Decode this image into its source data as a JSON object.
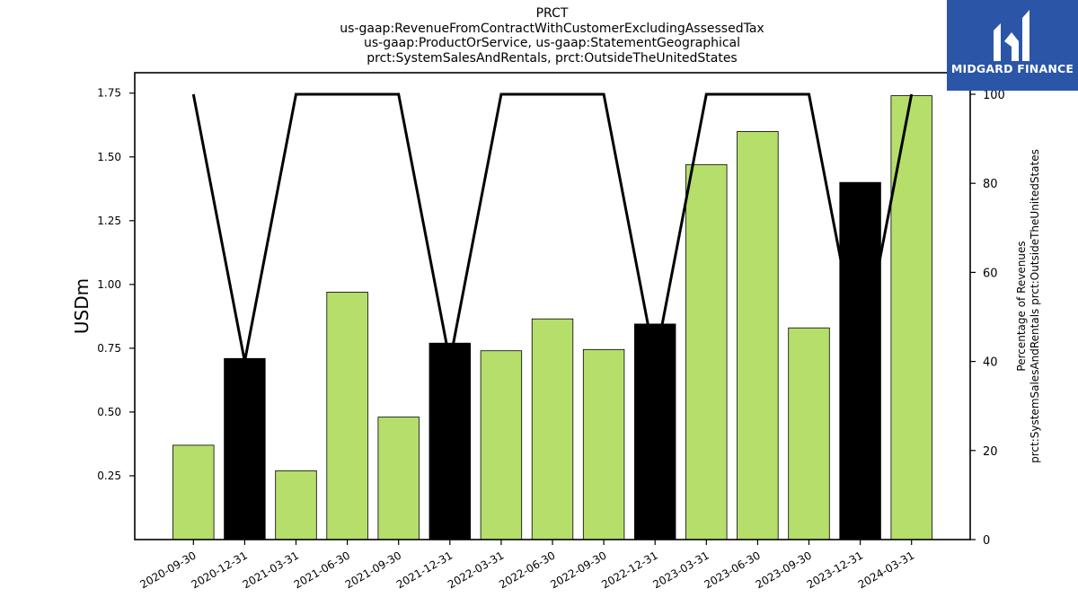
{
  "title_lines": [
    "PRCT",
    "us-gaap:RevenueFromContractWithCustomerExcludingAssessedTax",
    "us-gaap:ProductOrService, us-gaap:StatementGeographical",
    "prct:SystemSalesAndRentals, prct:OutsideTheUnitedStates"
  ],
  "logo": {
    "text": "MIDGARD FINANCE",
    "icon": "midgard-m-logo-icon",
    "color": "#2b56a8"
  },
  "chart_data": {
    "type": "bar",
    "categories": [
      "2020-09-30",
      "2020-12-31",
      "2021-03-31",
      "2021-06-30",
      "2021-09-30",
      "2021-12-31",
      "2022-03-31",
      "2022-06-30",
      "2022-09-30",
      "2022-12-31",
      "2023-03-31",
      "2023-06-30",
      "2023-09-30",
      "2023-12-31",
      "2024-03-31"
    ],
    "values": [
      0.37,
      0.71,
      0.27,
      0.97,
      0.48,
      0.77,
      0.74,
      0.865,
      0.745,
      0.845,
      1.47,
      1.6,
      0.83,
      1.4,
      1.74
    ],
    "bar_colors": [
      "#b5de6b",
      "#000000",
      "#b5de6b",
      "#b5de6b",
      "#b5de6b",
      "#000000",
      "#b5de6b",
      "#b5de6b",
      "#b5de6b",
      "#000000",
      "#b5de6b",
      "#b5de6b",
      "#b5de6b",
      "#000000",
      "#b5de6b"
    ],
    "ylabel": "USDm",
    "ylim": [
      0,
      1.83
    ],
    "yticks": [
      0.25,
      0.5,
      0.75,
      1.0,
      1.25,
      1.5,
      1.75
    ],
    "ytick_labels": [
      "0.25",
      "0.50",
      "0.75",
      "1.00",
      "1.25",
      "1.50",
      "1.75"
    ],
    "secondary": {
      "type": "line",
      "ylabel_lines": [
        "Percentage of Revenues",
        "prct:SystemSalesAndRentals prct:OutsideTheUnitedStates"
      ],
      "ylim": [
        0,
        100
      ],
      "yticks": [
        0,
        20,
        40,
        60,
        80,
        100
      ],
      "ytick_labels": [
        "0",
        "20",
        "40",
        "60",
        "80",
        "100"
      ],
      "color": "#000000",
      "values": [
        100,
        40,
        100,
        100,
        100,
        40,
        100,
        100,
        100,
        40,
        100,
        100,
        100,
        40,
        100
      ]
    }
  }
}
